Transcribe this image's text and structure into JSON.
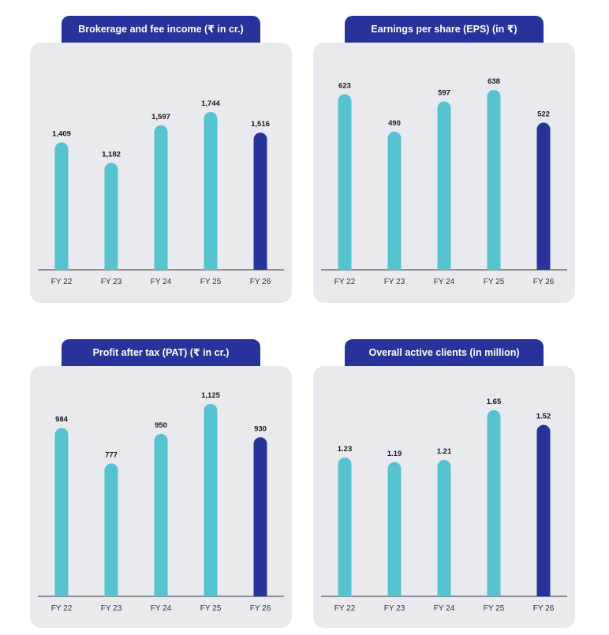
{
  "colors": {
    "highlight": "#27339a",
    "bar": "#56c3d0",
    "card": "#e8eaf0"
  },
  "chart_data": [
    {
      "type": "bar",
      "title": "Brokerage and fee income (₹ in cr.)",
      "categories": [
        "FY 22",
        "FY 23",
        "FY 24",
        "FY 25",
        "FY 26"
      ],
      "values": [
        1409,
        1182,
        1597,
        1744,
        1516
      ],
      "labels": [
        "1,409",
        "1,182",
        "1,597",
        "1,744",
        "1,516"
      ],
      "highlight_index": 4
    },
    {
      "type": "bar",
      "title": "Earnings per share (EPS) (in ₹)",
      "categories": [
        "FY 22",
        "FY 23",
        "FY 24",
        "FY 25",
        "FY 26"
      ],
      "values": [
        623,
        490,
        597,
        638,
        522
      ],
      "labels": [
        "623",
        "490",
        "597",
        "638",
        "522"
      ],
      "highlight_index": 4
    },
    {
      "type": "bar",
      "title": "Profit after tax (PAT) (₹ in cr.)",
      "categories": [
        "FY 22",
        "FY 23",
        "FY 24",
        "FY 25",
        "FY 26"
      ],
      "values": [
        984,
        777,
        950,
        1125,
        930
      ],
      "labels": [
        "984",
        "777",
        "950",
        "1,125",
        "930"
      ],
      "highlight_index": 4
    },
    {
      "type": "bar",
      "title": "Overall active clients (in million)",
      "categories": [
        "FY 22",
        "FY 23",
        "FY 24",
        "FY 25",
        "FY 26"
      ],
      "values": [
        1.23,
        1.19,
        1.21,
        1.65,
        1.52
      ],
      "labels": [
        "1.23",
        "1.19",
        "1.21",
        "1.65",
        "1.52"
      ],
      "highlight_index": 4
    }
  ]
}
